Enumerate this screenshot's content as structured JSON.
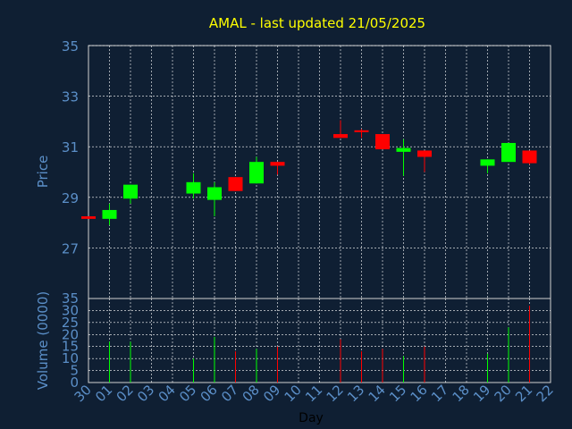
{
  "chart_data": {
    "type": "candlestick",
    "title": "AMAL - last updated 21/05/2025",
    "xlabel": "Day",
    "price_axis": {
      "label": "Price",
      "ylim": [
        25,
        35
      ],
      "ticks": [
        "27",
        "29",
        "31",
        "33",
        "35"
      ]
    },
    "volume_axis": {
      "label": "Volume (0000)",
      "ylim": [
        0,
        35
      ],
      "ticks": [
        "0",
        "5",
        "10",
        "15",
        "20",
        "25",
        "30",
        "35"
      ]
    },
    "x_ticks": [
      "30",
      "01",
      "02",
      "03",
      "04",
      "05",
      "06",
      "07",
      "08",
      "09",
      "10",
      "11",
      "12",
      "13",
      "14",
      "15",
      "16",
      "17",
      "18",
      "19",
      "20",
      "21",
      "22"
    ],
    "grid": true,
    "colors": {
      "up": "#00ff00",
      "down": "#ff0000",
      "grid": "#ffffff",
      "axis_text": "#5b8fc8",
      "title": "#ffff00",
      "background": "#0f1f33"
    },
    "candles": [
      {
        "x": "30",
        "open": 28.25,
        "high": 28.25,
        "low": 28.15,
        "close": 28.15,
        "volume": 0
      },
      {
        "x": "01",
        "open": 28.15,
        "high": 28.75,
        "low": 27.9,
        "close": 28.5,
        "volume": 17
      },
      {
        "x": "02",
        "open": 28.95,
        "high": 29.5,
        "low": 28.75,
        "close": 29.5,
        "volume": 17
      },
      {
        "x": "05",
        "open": 29.15,
        "high": 29.95,
        "low": 28.95,
        "close": 29.6,
        "volume": 10
      },
      {
        "x": "06",
        "open": 28.9,
        "high": 29.6,
        "low": 28.25,
        "close": 29.4,
        "volume": 19
      },
      {
        "x": "07",
        "open": 29.8,
        "high": 29.8,
        "low": 29.25,
        "close": 29.25,
        "volume": 13
      },
      {
        "x": "08",
        "open": 29.55,
        "high": 30.6,
        "low": 29.55,
        "close": 30.4,
        "volume": 14
      },
      {
        "x": "09",
        "open": 30.4,
        "high": 30.4,
        "low": 29.9,
        "close": 30.25,
        "volume": 15
      },
      {
        "x": "12",
        "open": 31.5,
        "high": 32.05,
        "low": 31.35,
        "close": 31.35,
        "volume": 18
      },
      {
        "x": "13",
        "open": 31.65,
        "high": 31.7,
        "low": 31.35,
        "close": 31.6,
        "volume": 13
      },
      {
        "x": "14",
        "open": 31.5,
        "high": 31.5,
        "low": 30.9,
        "close": 30.9,
        "volume": 14
      },
      {
        "x": "15",
        "open": 30.8,
        "high": 31.3,
        "low": 29.85,
        "close": 30.95,
        "volume": 11
      },
      {
        "x": "16",
        "open": 30.85,
        "high": 30.85,
        "low": 30.0,
        "close": 30.6,
        "volume": 15
      },
      {
        "x": "19",
        "open": 30.25,
        "high": 30.5,
        "low": 29.95,
        "close": 30.5,
        "volume": 12
      },
      {
        "x": "20",
        "open": 30.4,
        "high": 31.15,
        "low": 30.4,
        "close": 31.15,
        "volume": 23
      },
      {
        "x": "21",
        "open": 30.85,
        "high": 30.85,
        "low": 30.3,
        "close": 30.35,
        "volume": 32
      }
    ]
  }
}
